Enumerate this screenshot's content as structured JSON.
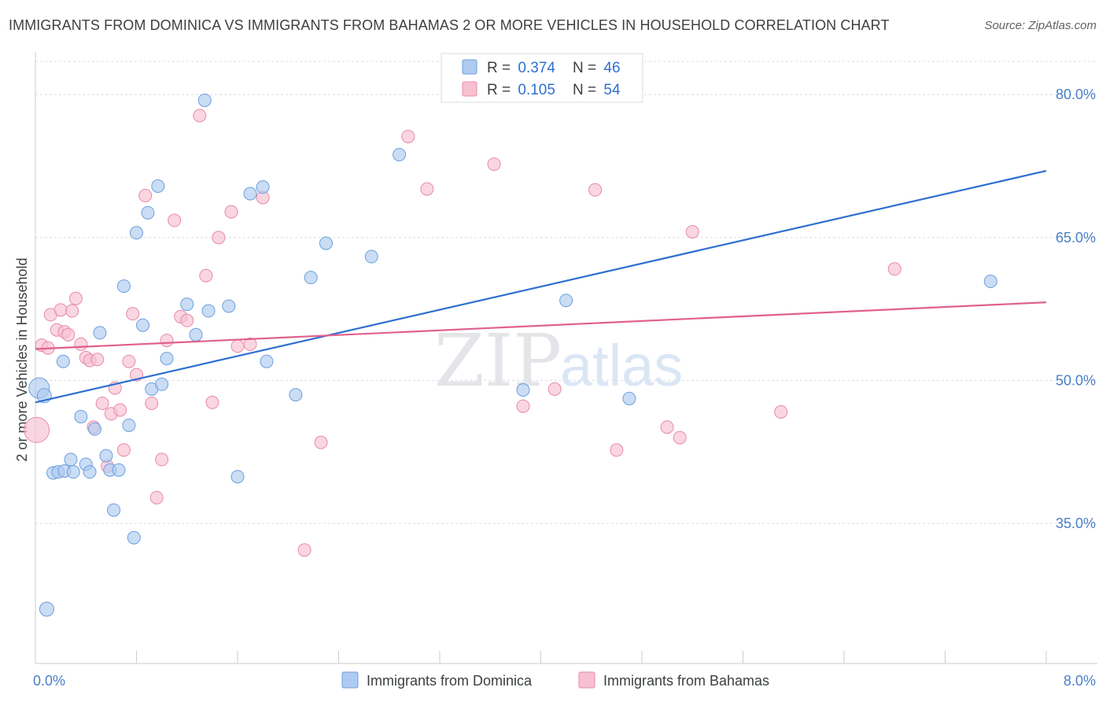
{
  "title": "IMMIGRANTS FROM DOMINICA VS IMMIGRANTS FROM BAHAMAS 2 OR MORE VEHICLES IN HOUSEHOLD CORRELATION CHART",
  "source": "Source: ZipAtlas.com",
  "watermark": {
    "part1": "ZIP",
    "part2": "atlas"
  },
  "colors": {
    "dominica_fill": "#aecbf0",
    "dominica_stroke": "#6c9fde",
    "dominica_line": "#2f6fd0",
    "bahamas_fill": "#f7c0d1",
    "bahamas_stroke": "#e88aa7",
    "bahamas_line": "#e0608c",
    "tick": "#4a7fc8",
    "grid": "#d9dce1"
  },
  "legend": {
    "rows": [
      {
        "r_label": "R = ",
        "r_value": "0.374",
        "n_label": "N = ",
        "n_value": "46"
      },
      {
        "r_label": "R = ",
        "r_value": "0.105",
        "n_label": "N = ",
        "n_value": "54"
      }
    ]
  },
  "chart_data": {
    "type": "scatter",
    "title": "IMMIGRANTS FROM DOMINICA VS IMMIGRANTS FROM BAHAMAS 2 OR MORE VEHICLES IN HOUSEHOLD CORRELATION CHART",
    "xlabel": "",
    "ylabel": "2 or more Vehicles in Household",
    "xlim": [
      0,
      8
    ],
    "ylim": [
      20.3,
      83.9
    ],
    "x_tick_labels": [
      {
        "value": 0,
        "label": "0.0%"
      },
      {
        "value": 8,
        "label": "8.0%"
      }
    ],
    "y_tick_labels": [
      {
        "value": 80,
        "label": "80.0%"
      },
      {
        "value": 65,
        "label": "65.0%"
      },
      {
        "value": 50,
        "label": "50.0%"
      },
      {
        "value": 35,
        "label": "35.0%"
      }
    ],
    "series": [
      {
        "name": "Immigrants from Dominica",
        "r": 0.374,
        "n": 46,
        "trend": {
          "x": [
            0,
            8
          ],
          "y": [
            47.7,
            72.0
          ]
        },
        "points": [
          [
            0.03,
            49.2,
            26
          ],
          [
            0.07,
            48.4,
            18
          ],
          [
            0.09,
            26.0,
            18
          ],
          [
            0.14,
            40.3,
            16
          ],
          [
            0.18,
            40.4,
            16
          ],
          [
            0.23,
            40.5,
            16
          ],
          [
            0.3,
            40.4,
            16
          ],
          [
            0.22,
            52.0,
            16
          ],
          [
            0.28,
            41.7,
            16
          ],
          [
            0.36,
            46.2,
            16
          ],
          [
            0.4,
            41.2,
            16
          ],
          [
            0.43,
            40.4,
            16
          ],
          [
            0.47,
            44.9,
            16
          ],
          [
            0.51,
            55.0,
            16
          ],
          [
            0.56,
            42.1,
            16
          ],
          [
            0.59,
            40.6,
            16
          ],
          [
            0.62,
            36.4,
            16
          ],
          [
            0.66,
            40.6,
            16
          ],
          [
            0.7,
            59.9,
            16
          ],
          [
            0.74,
            45.3,
            16
          ],
          [
            0.78,
            33.5,
            16
          ],
          [
            0.8,
            65.5,
            16
          ],
          [
            0.85,
            55.8,
            16
          ],
          [
            0.89,
            67.6,
            16
          ],
          [
            0.92,
            49.1,
            16
          ],
          [
            0.97,
            70.4,
            16
          ],
          [
            1.0,
            49.6,
            16
          ],
          [
            1.04,
            52.3,
            16
          ],
          [
            1.2,
            58.0,
            16
          ],
          [
            1.27,
            54.8,
            16
          ],
          [
            1.34,
            79.4,
            16
          ],
          [
            1.37,
            57.3,
            16
          ],
          [
            1.53,
            57.8,
            16
          ],
          [
            1.6,
            39.9,
            16
          ],
          [
            1.7,
            69.6,
            16
          ],
          [
            1.8,
            70.3,
            16
          ],
          [
            1.83,
            52.0,
            16
          ],
          [
            2.06,
            48.5,
            16
          ],
          [
            2.18,
            60.8,
            16
          ],
          [
            2.3,
            64.4,
            16
          ],
          [
            2.66,
            63.0,
            16
          ],
          [
            2.88,
            73.7,
            16
          ],
          [
            3.86,
            49.0,
            16
          ],
          [
            4.2,
            58.4,
            16
          ],
          [
            4.7,
            48.1,
            16
          ],
          [
            7.56,
            60.4,
            16
          ]
        ]
      },
      {
        "name": "Immigrants from Bahamas",
        "r": 0.105,
        "n": 54,
        "trend": {
          "x": [
            0,
            8
          ],
          "y": [
            53.3,
            58.2
          ]
        },
        "points": [
          [
            0.01,
            44.8,
            32
          ],
          [
            0.05,
            53.7,
            16
          ],
          [
            0.1,
            53.4,
            16
          ],
          [
            0.12,
            56.9,
            16
          ],
          [
            0.17,
            55.3,
            16
          ],
          [
            0.2,
            57.4,
            16
          ],
          [
            0.23,
            55.1,
            16
          ],
          [
            0.26,
            54.8,
            16
          ],
          [
            0.29,
            57.3,
            16
          ],
          [
            0.32,
            58.6,
            16
          ],
          [
            0.36,
            53.8,
            16
          ],
          [
            0.4,
            52.4,
            16
          ],
          [
            0.43,
            52.1,
            16
          ],
          [
            0.46,
            45.1,
            16
          ],
          [
            0.49,
            52.2,
            16
          ],
          [
            0.53,
            47.6,
            16
          ],
          [
            0.57,
            41.0,
            16
          ],
          [
            0.6,
            46.5,
            16
          ],
          [
            0.63,
            49.2,
            16
          ],
          [
            0.67,
            46.9,
            16
          ],
          [
            0.7,
            42.7,
            16
          ],
          [
            0.74,
            52.0,
            16
          ],
          [
            0.77,
            57.0,
            16
          ],
          [
            0.8,
            50.6,
            16
          ],
          [
            0.87,
            69.4,
            16
          ],
          [
            0.92,
            47.6,
            16
          ],
          [
            0.96,
            37.7,
            16
          ],
          [
            1.0,
            41.7,
            16
          ],
          [
            1.04,
            54.2,
            16
          ],
          [
            1.1,
            66.8,
            16
          ],
          [
            1.15,
            56.7,
            16
          ],
          [
            1.2,
            56.3,
            16
          ],
          [
            1.3,
            77.8,
            16
          ],
          [
            1.35,
            61.0,
            16
          ],
          [
            1.4,
            47.7,
            16
          ],
          [
            1.45,
            65.0,
            16
          ],
          [
            1.55,
            67.7,
            16
          ],
          [
            1.6,
            53.6,
            16
          ],
          [
            1.7,
            53.8,
            16
          ],
          [
            1.8,
            69.2,
            16
          ],
          [
            2.13,
            32.2,
            16
          ],
          [
            2.26,
            43.5,
            16
          ],
          [
            2.95,
            75.6,
            16
          ],
          [
            3.1,
            70.1,
            16
          ],
          [
            3.63,
            72.7,
            16
          ],
          [
            3.86,
            47.3,
            16
          ],
          [
            4.11,
            49.1,
            16
          ],
          [
            4.43,
            70.0,
            16
          ],
          [
            4.6,
            42.7,
            16
          ],
          [
            5.0,
            45.1,
            16
          ],
          [
            5.1,
            44.0,
            16
          ],
          [
            5.2,
            65.6,
            16
          ],
          [
            5.9,
            46.7,
            16
          ],
          [
            6.8,
            61.7,
            16
          ]
        ]
      }
    ]
  }
}
